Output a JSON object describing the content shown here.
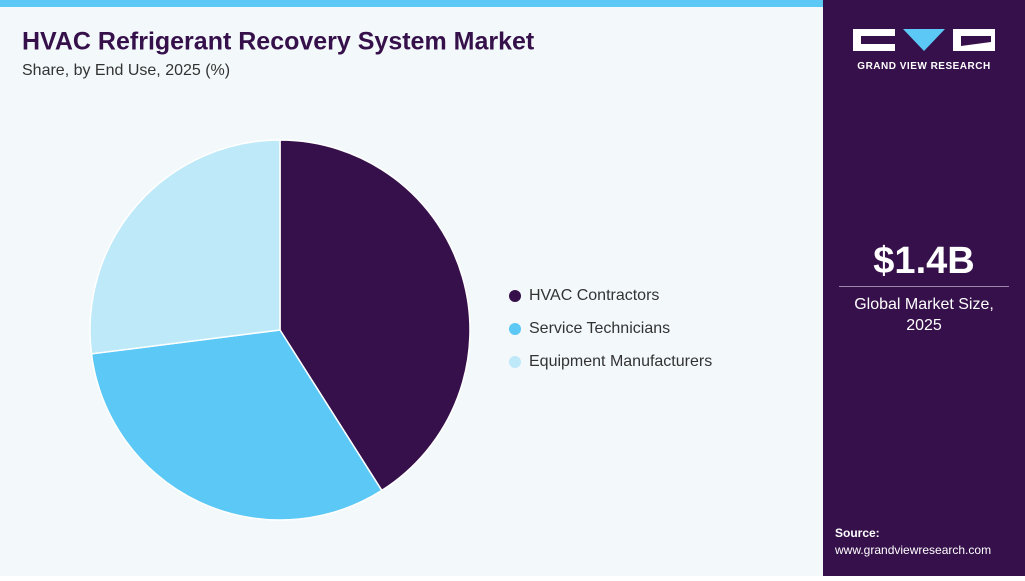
{
  "chart_data": {
    "type": "pie",
    "title": "HVAC Refrigerant Recovery System Market",
    "subtitle": "Share, by End Use, 2025 (%)",
    "categories": [
      "HVAC Contractors",
      "Service Technicians",
      "Equipment Manufacturers"
    ],
    "values": [
      41,
      32,
      27
    ],
    "colors": [
      "#36104a",
      "#5bc8f5",
      "#bde9f9"
    ]
  },
  "sidebar": {
    "logo_text": "GRAND VIEW RESEARCH",
    "market_size": "$1.4B",
    "market_label": "Global Market Size, 2025",
    "source_label": "Source:",
    "source_url": "www.grandviewresearch.com"
  }
}
